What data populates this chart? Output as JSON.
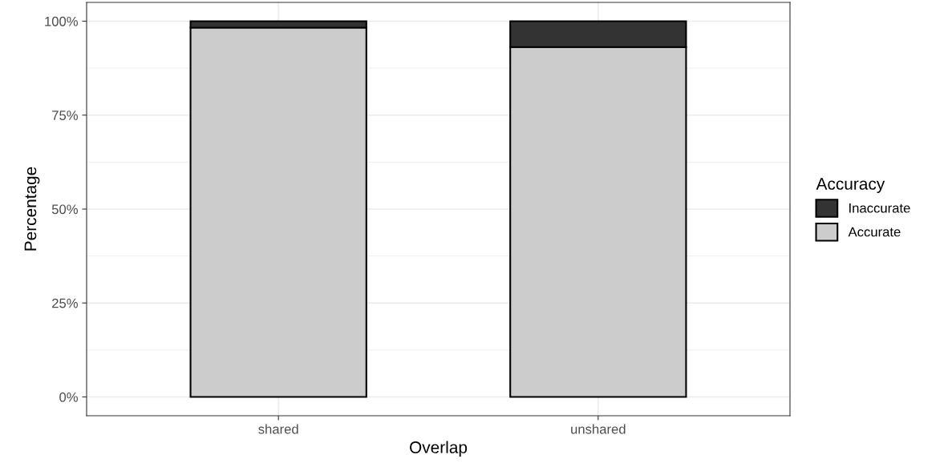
{
  "chart_data": {
    "type": "bar",
    "stacked": true,
    "xlabel": "Overlap",
    "ylabel": "Percentage",
    "legend_title": "Accuracy",
    "legend": "right",
    "categories": [
      "shared",
      "unshared"
    ],
    "series": [
      {
        "name": "Accurate",
        "color": "#cccccc",
        "values": [
          98.3,
          93.1
        ]
      },
      {
        "name": "Inaccurate",
        "color": "#333333",
        "values": [
          1.7,
          6.9
        ]
      }
    ],
    "ylim": [
      -5,
      105
    ],
    "yticks": [
      {
        "value": 0,
        "label": "0%"
      },
      {
        "value": 25,
        "label": "25%"
      },
      {
        "value": 50,
        "label": "50%"
      },
      {
        "value": 75,
        "label": "75%"
      },
      {
        "value": 100,
        "label": "100%"
      }
    ],
    "grid": true
  }
}
